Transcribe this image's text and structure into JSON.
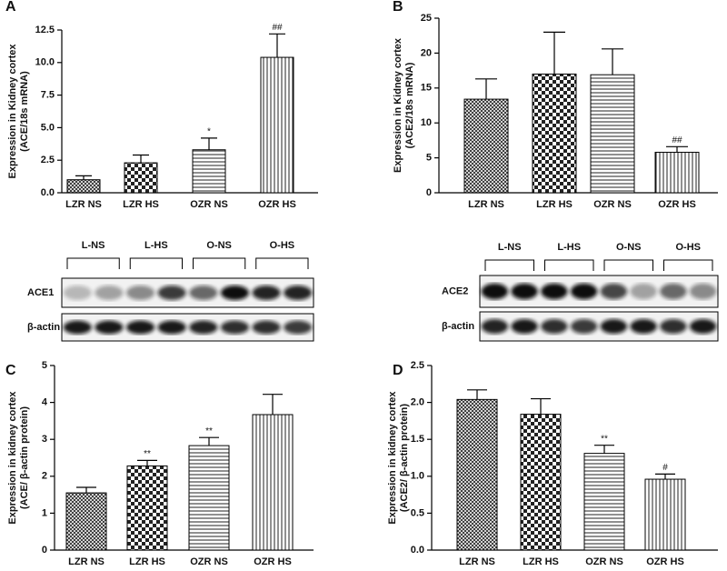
{
  "chart_data": [
    {
      "type": "bar",
      "panel": "A",
      "y_label": [
        "Expression in Kidney cortex",
        "(ACE/18s mRNA)"
      ],
      "categories": [
        "LZR NS",
        "LZR HS",
        "OZR NS",
        "OZR HS"
      ],
      "values": [
        1.0,
        2.3,
        3.3,
        10.4
      ],
      "errors": [
        0.3,
        0.6,
        0.9,
        1.8
      ],
      "annotations": [
        null,
        null,
        "*",
        "##"
      ],
      "patterns": [
        "crosshatch",
        "checker",
        "horizontal",
        "vertical"
      ],
      "ylim": [
        0,
        12.5
      ],
      "yticks": [
        {
          "value": 0,
          "label": "0.0"
        },
        {
          "value": 2.5,
          "label": "2.5"
        },
        {
          "value": 5,
          "label": "5.0"
        },
        {
          "value": 7.5,
          "label": "7.5"
        },
        {
          "value": 10,
          "label": "10.0"
        },
        {
          "value": 12.5,
          "label": "12.5"
        }
      ]
    },
    {
      "type": "bar",
      "panel": "B",
      "y_label": [
        "Expression in Kidney cortex",
        "(ACE2/18s mRNA)"
      ],
      "categories": [
        "LZR NS",
        "LZR HS",
        "OZR NS",
        "OZR HS"
      ],
      "values": [
        13.4,
        17.0,
        16.9,
        5.8
      ],
      "errors": [
        2.9,
        6.0,
        3.7,
        0.8
      ],
      "annotations": [
        null,
        null,
        null,
        "##"
      ],
      "patterns": [
        "crosshatch",
        "checker",
        "horizontal",
        "vertical"
      ],
      "ylim": [
        0,
        25
      ],
      "yticks": [
        0,
        5,
        10,
        15,
        20,
        25
      ]
    },
    {
      "type": "bar",
      "panel": "C",
      "y_label": [
        "Expression in kidney cortex",
        "(ACE/ β-actin protein)"
      ],
      "categories": [
        "LZR NS",
        "LZR HS",
        "OZR NS",
        "OZR HS"
      ],
      "values": [
        1.55,
        2.28,
        2.83,
        3.67
      ],
      "errors": [
        0.15,
        0.15,
        0.22,
        0.55
      ],
      "annotations": [
        null,
        "**",
        "**",
        null
      ],
      "patterns": [
        "crosshatch",
        "checker",
        "horizontal",
        "vertical"
      ],
      "ylim": [
        0,
        5
      ],
      "yticks": [
        0,
        1,
        2,
        3,
        4,
        5
      ]
    },
    {
      "type": "bar",
      "panel": "D",
      "y_label": [
        "Expression in kidney cortex",
        "(ACE2/ β-actin protein)"
      ],
      "categories": [
        "LZR NS",
        "LZR HS",
        "OZR NS",
        "OZR HS"
      ],
      "values": [
        2.04,
        1.84,
        1.31,
        0.96
      ],
      "errors": [
        0.13,
        0.21,
        0.11,
        0.07
      ],
      "annotations": [
        null,
        null,
        "**",
        "#"
      ],
      "patterns": [
        "crosshatch",
        "checker",
        "horizontal",
        "vertical"
      ],
      "ylim": [
        0,
        2.5
      ],
      "yticks": [
        {
          "value": 0,
          "label": "0.0"
        },
        {
          "value": 0.5,
          "label": "0.5"
        },
        {
          "value": 1,
          "label": "1.0"
        },
        {
          "value": 1.5,
          "label": "1.5"
        },
        {
          "value": 2,
          "label": "2.0"
        },
        {
          "value": 2.5,
          "label": "2.5"
        }
      ]
    }
  ],
  "blots": [
    {
      "groups": [
        "L-NS",
        "L-HS",
        "O-NS",
        "O-HS"
      ],
      "rows": [
        "ACE1",
        "β-actin"
      ]
    },
    {
      "groups": [
        "L-NS",
        "L-HS",
        "O-NS",
        "O-HS"
      ],
      "rows": [
        "ACE2",
        "β-actin"
      ]
    }
  ]
}
